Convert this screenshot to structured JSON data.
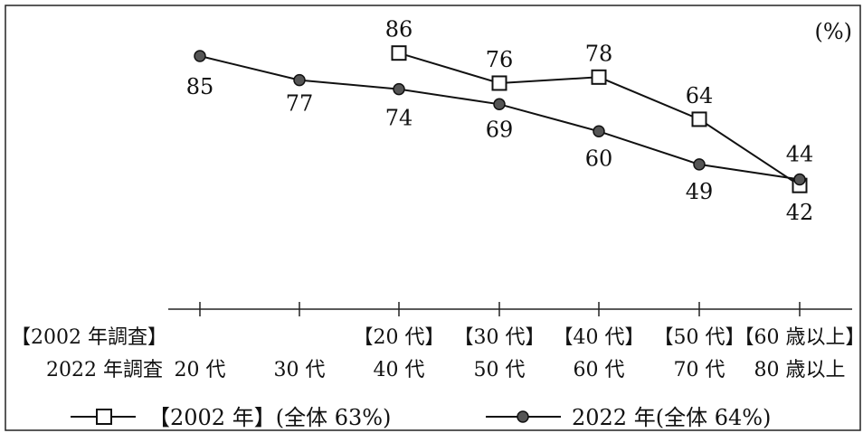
{
  "chart_data": {
    "type": "line",
    "unit_label": "(%)",
    "row_labels": [
      "【2002 年調査】",
      "2022 年調査"
    ],
    "categories_2002": [
      "",
      "",
      "【20 代】",
      "【30 代】",
      "【40 代】",
      "【50 代】",
      "【60 歳以上】"
    ],
    "categories_2022": [
      "20 代",
      "30 代",
      "40 代",
      "50 代",
      "60 代",
      "70 代",
      "80 歳以上"
    ],
    "ylim": [
      0,
      100
    ],
    "series": [
      {
        "name": "【2002 年】(全体 63%)",
        "marker": "square",
        "values": [
          null,
          null,
          86,
          76,
          78,
          64,
          42
        ],
        "labels": [
          "",
          "",
          "86",
          "76",
          "78",
          "64",
          "42"
        ]
      },
      {
        "name": "2022 年(全体 64%)",
        "marker": "circle",
        "values": [
          85,
          77,
          74,
          69,
          60,
          49,
          44
        ],
        "labels": [
          "85",
          "77",
          "74",
          "69",
          "60",
          "49",
          "44"
        ]
      }
    ],
    "colors": {
      "line": "#111111",
      "dot_fill": "#555555",
      "square_fill": "#ffffff",
      "frame": "#222222"
    }
  }
}
